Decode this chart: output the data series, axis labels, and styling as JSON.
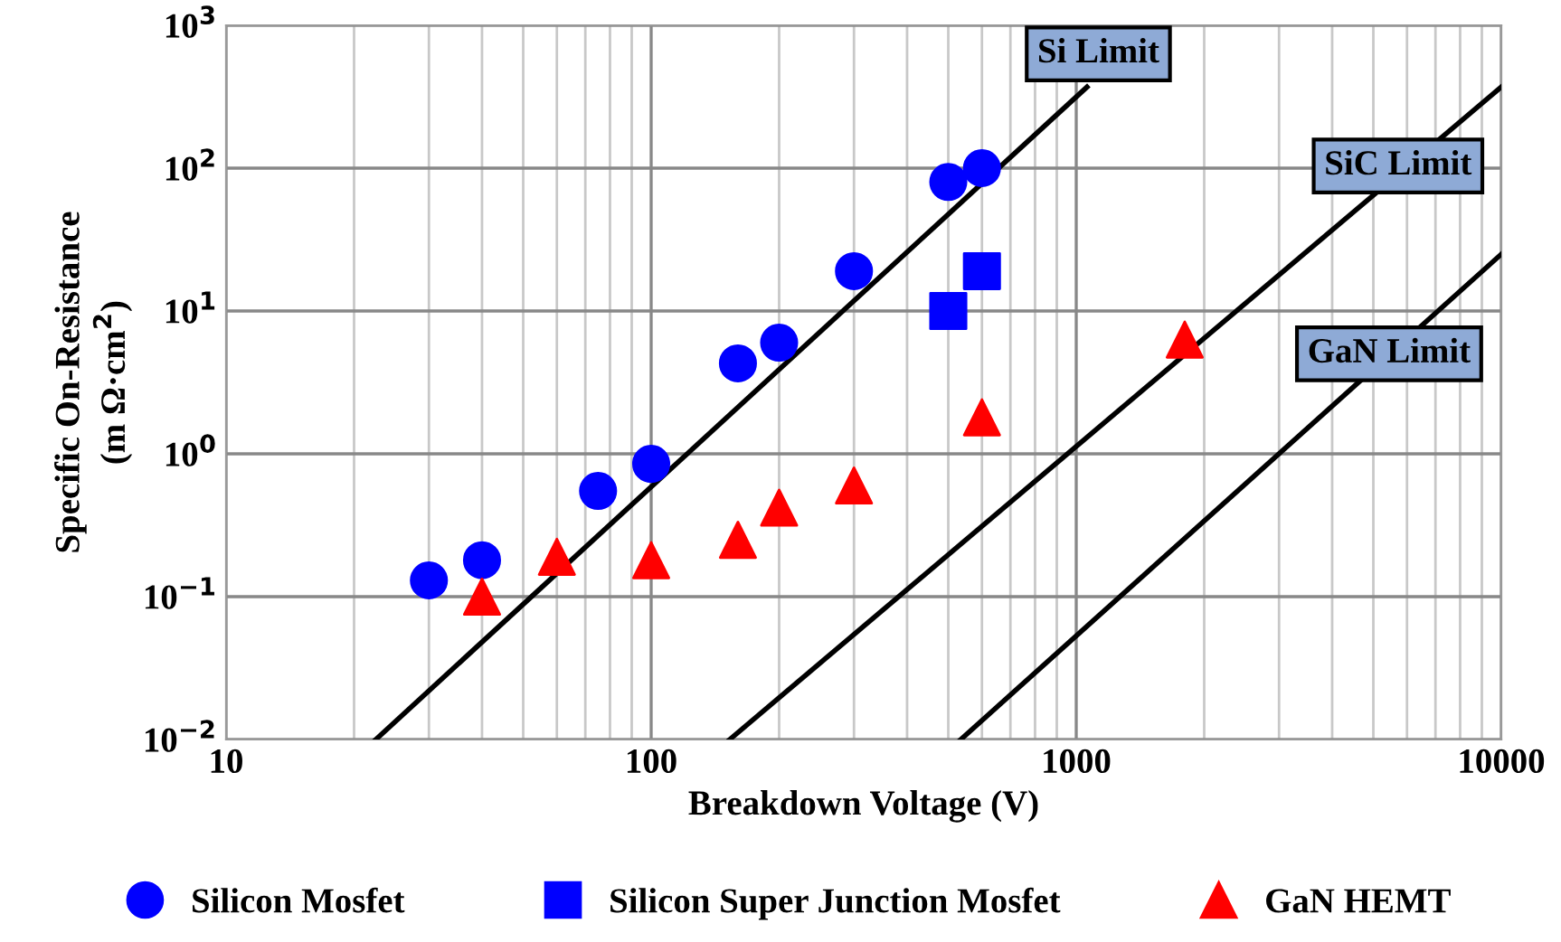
{
  "chart_data": {
    "type": "scatter",
    "xlabel": "Breakdown Voltage (V)",
    "ylabel": "Specific On-Resistance\n(m Ω·cm$^{2}$)",
    "log": "xy",
    "xlim": [
      10,
      10000
    ],
    "ylim": [
      0.01,
      1000
    ],
    "xticks": [
      10,
      100,
      1000,
      10000
    ],
    "yticks": [
      {
        "value": 0.01,
        "label": "10$^{−2}$"
      },
      {
        "value": 0.1,
        "label": "10$^{−1}$"
      },
      {
        "value": 1,
        "label": "10$^{0}$"
      },
      {
        "value": 10,
        "label": "10$^{1}$"
      },
      {
        "value": 100,
        "label": "10$^{2}$"
      },
      {
        "value": 1000,
        "label": "10$^{3}$"
      }
    ],
    "grid": true,
    "legend": "bottom",
    "series": [
      {
        "name": "Silicon Mosfet",
        "marker": "circle",
        "color": "#0000ff",
        "x": [
          30,
          40,
          75,
          100,
          160,
          200,
          300,
          500,
          600
        ],
        "values": [
          0.13,
          0.18,
          0.55,
          0.85,
          4.3,
          6,
          19,
          80,
          100
        ]
      },
      {
        "name": "Silicon Super Junction Mosfet",
        "marker": "square",
        "color": "#0000ff",
        "x": [
          500,
          600
        ],
        "values": [
          10,
          19
        ]
      },
      {
        "name": "GaN HEMT",
        "marker": "triangle",
        "color": "#ff0000",
        "x": [
          40,
          60,
          100,
          160,
          200,
          300,
          600,
          1800
        ],
        "values": [
          0.1,
          0.19,
          0.18,
          0.25,
          0.42,
          0.6,
          1.8,
          6.3
        ]
      },
      {
        "name": "Si Limit",
        "type": "line",
        "color": "#000000",
        "x": [
          22.5,
          1060
        ],
        "values": [
          0.01,
          370
        ]
      },
      {
        "name": "SiC Limit",
        "type": "line",
        "color": "#000000",
        "x": [
          153,
          10000
        ],
        "values": [
          0.01,
          370
        ]
      },
      {
        "name": "GaN Limit",
        "type": "line",
        "color": "#000000",
        "x": [
          535,
          10000
        ],
        "values": [
          0.01,
          25
        ]
      }
    ]
  }
}
